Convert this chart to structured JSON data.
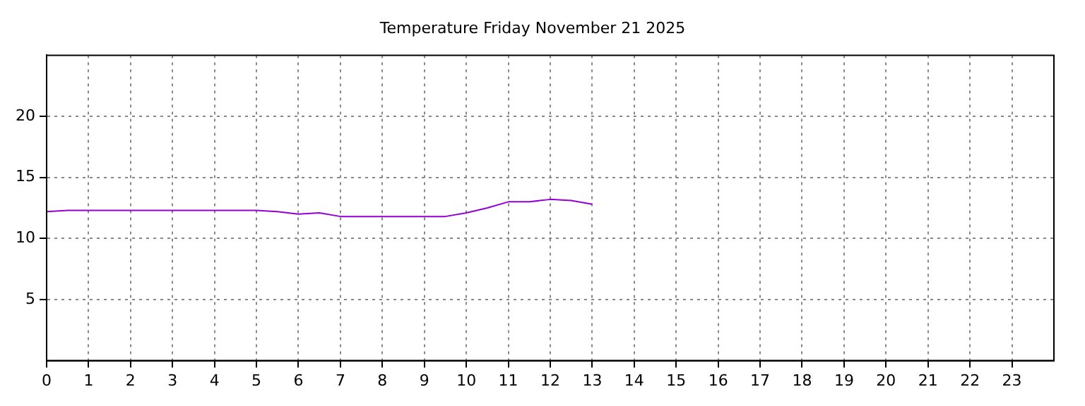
{
  "chart_data": {
    "type": "line",
    "title": "Temperature Friday November 21 2025",
    "x": [
      0,
      0.5,
      1,
      1.5,
      2,
      2.5,
      3,
      3.5,
      4,
      4.5,
      5,
      5.5,
      6,
      6.5,
      7,
      7.5,
      8,
      8.5,
      9,
      9.5,
      10,
      10.5,
      11,
      11.5,
      12,
      12.5,
      13
    ],
    "series": [
      {
        "color": "#9400d3",
        "values": [
          12.2,
          12.3,
          12.3,
          12.3,
          12.3,
          12.3,
          12.3,
          12.3,
          12.3,
          12.3,
          12.3,
          12.2,
          12.0,
          12.1,
          11.8,
          11.8,
          11.8,
          11.8,
          11.8,
          11.8,
          12.1,
          12.5,
          13.0,
          13.0,
          13.2,
          13.1,
          12.8
        ]
      }
    ],
    "xlim": [
      0,
      24
    ],
    "xticks": [
      0,
      1,
      2,
      3,
      4,
      5,
      6,
      7,
      8,
      9,
      10,
      11,
      12,
      13,
      14,
      15,
      16,
      17,
      18,
      19,
      20,
      21,
      22,
      23
    ],
    "ylim": [
      0,
      25
    ],
    "yticks": [
      5,
      10,
      15,
      20
    ],
    "grid": true,
    "legend": false,
    "marker": "none",
    "line_style": "solid"
  }
}
